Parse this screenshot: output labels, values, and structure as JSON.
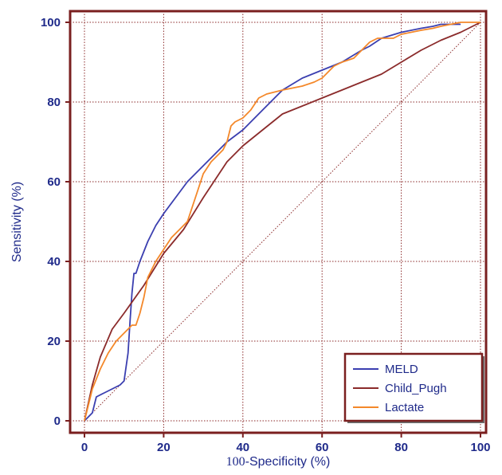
{
  "chart_data": {
    "type": "line",
    "title": "",
    "xlabel": "100-Specificity (%)",
    "ylabel": "Sensitivity (%)",
    "xlim": [
      0,
      100
    ],
    "ylim": [
      0,
      100
    ],
    "xticks": [
      0,
      20,
      40,
      60,
      80,
      100
    ],
    "yticks": [
      0,
      20,
      40,
      60,
      80,
      100
    ],
    "grid": true,
    "legend_position": "bottom-right",
    "frame_color": "#7a1f1f",
    "grid_color": "#8b2a2a",
    "text_color": "#1f2a8a",
    "series": [
      {
        "name": "MELD",
        "color": "#3b3fb0",
        "x": [
          0,
          1,
          2,
          2.5,
          3,
          5,
          7,
          9,
          10,
          11,
          11.5,
          12,
          12.5,
          13,
          14,
          16,
          18,
          20,
          23,
          26,
          30,
          33,
          36,
          40,
          45,
          50,
          55,
          60,
          65,
          70,
          72,
          75,
          80,
          85,
          88,
          90,
          95
        ],
        "y": [
          0,
          1,
          2,
          4,
          6,
          7,
          8,
          9,
          10,
          17,
          25,
          32,
          37,
          37,
          40,
          45,
          49,
          52,
          56,
          60,
          64,
          67,
          70,
          73,
          78,
          83,
          86,
          88,
          90,
          93,
          94,
          96,
          97.5,
          98.5,
          99,
          99.5,
          99.5
        ]
      },
      {
        "name": "Child_Pugh",
        "color": "#8b2b2b",
        "x": [
          0,
          2,
          4,
          7,
          10,
          15,
          20,
          25,
          30,
          36,
          40,
          45,
          50,
          55,
          60,
          65,
          70,
          75,
          80,
          85,
          90,
          95,
          100
        ],
        "y": [
          0,
          9,
          16,
          23,
          27,
          34,
          42,
          48,
          56,
          65,
          69,
          73,
          77,
          79,
          81,
          83,
          85,
          87,
          90,
          93,
          95.5,
          97.5,
          100
        ]
      },
      {
        "name": "Lactate",
        "color": "#f4882a",
        "x": [
          0,
          1,
          2,
          4,
          6,
          8,
          10,
          12,
          13,
          14,
          15,
          16,
          18,
          20,
          22,
          24,
          26,
          28,
          30,
          32,
          34,
          35,
          36,
          37,
          38,
          40,
          42,
          44,
          46,
          50,
          55,
          58,
          60,
          61,
          62,
          63,
          65,
          68,
          70,
          72,
          74,
          78,
          80,
          85,
          88,
          90,
          95,
          100
        ],
        "y": [
          0,
          4,
          8,
          13,
          17,
          20,
          22,
          24,
          24,
          27,
          31,
          36,
          40,
          43,
          46,
          48,
          50,
          56,
          62,
          65,
          67,
          68,
          70,
          74,
          75,
          76,
          78,
          81,
          82,
          83,
          84,
          85,
          86,
          87,
          88,
          89,
          90,
          91,
          93,
          95,
          96,
          96,
          97,
          98,
          98.5,
          99,
          100,
          100
        ]
      }
    ]
  }
}
